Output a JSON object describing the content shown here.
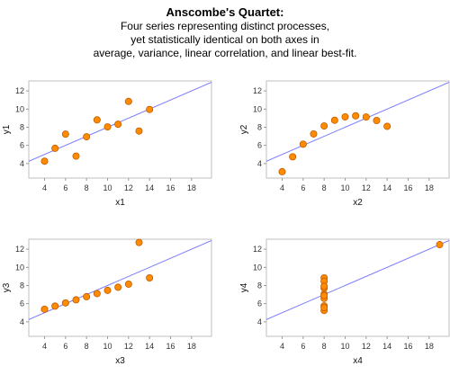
{
  "title": "Anscombe's Quartet:",
  "subtitle_lines": [
    "Four series representing distinct processes,",
    "yet statistically identical on both axes in",
    "average, variance, linear correlation, and linear best-fit."
  ],
  "colors": {
    "point_fill": "#ff8c00",
    "point_stroke": "#c05a00",
    "fit_line": "#7b7bff",
    "frame": "#bfbfbf"
  },
  "chart_data": [
    {
      "type": "scatter",
      "xlabel": "x1",
      "ylabel": "y1",
      "xlim": [
        2.5,
        19.9
      ],
      "ylim": [
        2.4,
        13.1
      ],
      "xticks": [
        4,
        6,
        8,
        10,
        12,
        14,
        16,
        18
      ],
      "yticks": [
        4,
        6,
        8,
        10,
        12
      ],
      "x": [
        10,
        8,
        13,
        9,
        11,
        14,
        6,
        4,
        12,
        7,
        5
      ],
      "y": [
        8.04,
        6.95,
        7.58,
        8.81,
        8.33,
        9.96,
        7.24,
        4.26,
        10.84,
        4.82,
        5.68
      ],
      "fit": {
        "intercept": 3.0,
        "slope": 0.5
      }
    },
    {
      "type": "scatter",
      "xlabel": "x2",
      "ylabel": "y2",
      "xlim": [
        2.5,
        19.9
      ],
      "ylim": [
        2.4,
        13.1
      ],
      "xticks": [
        4,
        6,
        8,
        10,
        12,
        14,
        16,
        18
      ],
      "yticks": [
        4,
        6,
        8,
        10,
        12
      ],
      "x": [
        10,
        8,
        13,
        9,
        11,
        14,
        6,
        4,
        12,
        7,
        5
      ],
      "y": [
        9.14,
        8.14,
        8.74,
        8.77,
        9.26,
        8.1,
        6.13,
        3.1,
        9.13,
        7.26,
        4.74
      ],
      "fit": {
        "intercept": 3.0,
        "slope": 0.5
      }
    },
    {
      "type": "scatter",
      "xlabel": "x3",
      "ylabel": "y3",
      "xlim": [
        2.5,
        19.9
      ],
      "ylim": [
        2.4,
        13.1
      ],
      "xticks": [
        4,
        6,
        8,
        10,
        12,
        14,
        16,
        18
      ],
      "yticks": [
        4,
        6,
        8,
        10,
        12
      ],
      "x": [
        10,
        8,
        13,
        9,
        11,
        14,
        6,
        4,
        12,
        7,
        5
      ],
      "y": [
        7.46,
        6.77,
        12.74,
        7.11,
        7.81,
        8.84,
        6.08,
        5.39,
        8.15,
        6.42,
        5.73
      ],
      "fit": {
        "intercept": 3.0,
        "slope": 0.5
      }
    },
    {
      "type": "scatter",
      "xlabel": "x4",
      "ylabel": "y4",
      "xlim": [
        2.5,
        19.9
      ],
      "ylim": [
        2.4,
        13.1
      ],
      "xticks": [
        4,
        6,
        8,
        10,
        12,
        14,
        16,
        18
      ],
      "yticks": [
        4,
        6,
        8,
        10,
        12
      ],
      "x": [
        8,
        8,
        8,
        8,
        8,
        8,
        8,
        19,
        8,
        8,
        8
      ],
      "y": [
        6.58,
        5.76,
        7.71,
        8.84,
        8.47,
        7.04,
        5.25,
        12.5,
        5.56,
        7.91,
        6.89
      ],
      "fit": {
        "intercept": 3.0,
        "slope": 0.5
      }
    }
  ]
}
